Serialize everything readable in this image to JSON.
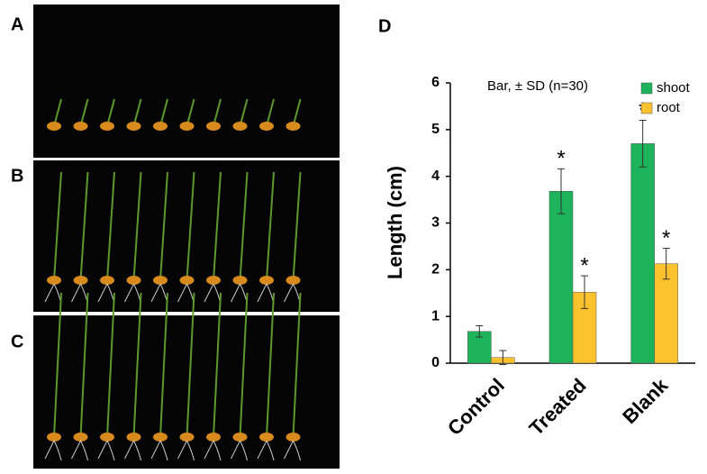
{
  "panel_labels": [
    "A",
    "B",
    "C"
  ],
  "chart_data": {
    "type": "bar",
    "label": "D",
    "annotation": "Bar, ± SD (n=30)",
    "y_label": "Length (cm)",
    "categories": [
      "Control",
      "Treated",
      "Blank"
    ],
    "series": [
      {
        "name": "shoot",
        "color": "#1db35a",
        "values": [
          0.68,
          3.68,
          4.7
        ],
        "errors": [
          0.12,
          0.48,
          0.5
        ],
        "markers": [
          null,
          "*",
          "*"
        ]
      },
      {
        "name": "root",
        "color": "#fcc22d",
        "values": [
          0.12,
          1.52,
          2.13
        ],
        "errors": [
          0.15,
          0.35,
          0.33
        ],
        "markers": [
          null,
          "*",
          "*"
        ]
      }
    ],
    "ylim": [
      0,
      6
    ],
    "yticks": [
      0,
      1,
      2,
      3,
      4,
      5,
      6
    ],
    "grid": false,
    "legend": "top-right"
  }
}
